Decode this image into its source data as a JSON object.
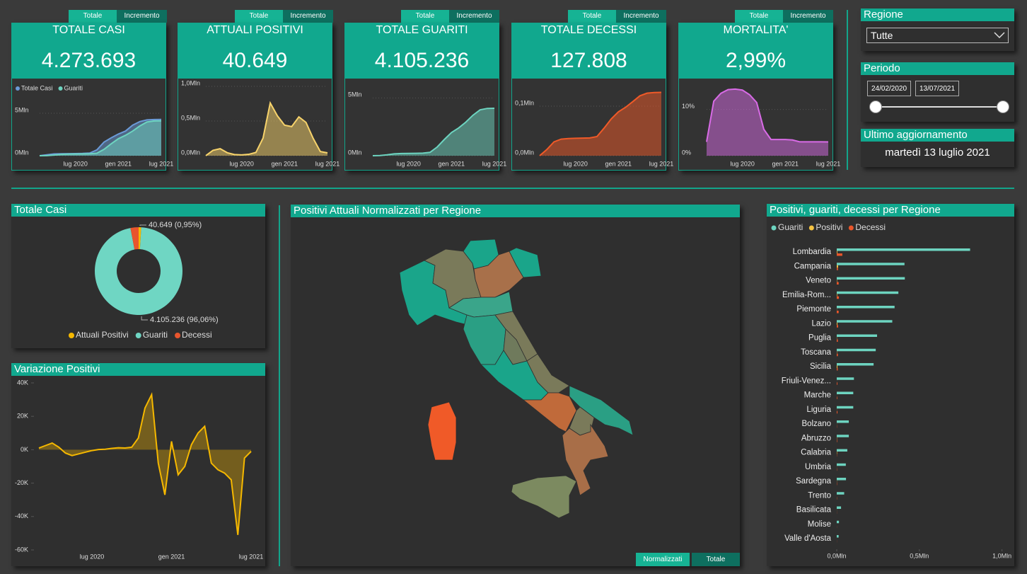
{
  "kpis": [
    {
      "tabs": [
        "Totale",
        "Incremento"
      ],
      "title": "TOTALE CASI",
      "value": "4.273.693"
    },
    {
      "tabs": [
        "Totale",
        "Incremento"
      ],
      "title": "ATTUALI POSITIVI",
      "value": "40.649"
    },
    {
      "tabs": [
        "Totale",
        "Incremento"
      ],
      "title": "TOTALE GUARITI",
      "value": "4.105.236"
    },
    {
      "tabs": [
        "Totale",
        "Incremento"
      ],
      "title": "TOTALE DECESSI",
      "value": "127.808"
    },
    {
      "tabs": [
        "Totale",
        "Incremento"
      ],
      "title": "MORTALITA'",
      "value": "2,99%"
    }
  ],
  "filters": {
    "regione": {
      "label": "Regione",
      "value": "Tutte"
    },
    "periodo": {
      "label": "Periodo",
      "from": "24/02/2020",
      "to": "13/07/2021"
    },
    "aggiornamento": {
      "label": "Ultimo aggiornamento",
      "value": "martedì 13 luglio 2021"
    }
  },
  "map": {
    "title": "Positivi Attuali Normalizzati per Regione",
    "buttons": [
      "Normalizzati",
      "Totale"
    ]
  },
  "chart_data": [
    {
      "type": "area",
      "categories": [
        null,
        null,
        null,
        null,
        null,
        "lug 2020",
        null,
        null,
        null,
        null,
        null,
        "gen 2021",
        null,
        null,
        null,
        null,
        null,
        "lug 2021"
      ],
      "series": [
        {
          "name": "Totale Casi",
          "color": "#6b9bd8",
          "values": [
            1000,
            105000,
            205000,
            232000,
            240000,
            247000,
            269000,
            314000,
            679000,
            1600000,
            2100000,
            2550000,
            2900000,
            3600000,
            4020000,
            4220000,
            4260000,
            4273693
          ]
        },
        {
          "name": "Guariti",
          "color": "#6dd4c0",
          "values": [
            0,
            15000,
            75000,
            160000,
            190000,
            200000,
            210000,
            225000,
            290000,
            750000,
            1400000,
            2000000,
            2400000,
            2900000,
            3500000,
            3970000,
            4090000,
            4105236
          ]
        }
      ],
      "ylim": [
        0,
        7000000
      ],
      "yticks": [
        {
          "value": 0,
          "label": "0Mln"
        },
        {
          "value": 5000000,
          "label": "5Mln"
        }
      ],
      "legend": "top-left"
    },
    {
      "type": "area",
      "categories": [
        null,
        null,
        null,
        null,
        null,
        "lug 2020",
        null,
        null,
        null,
        null,
        null,
        "gen 2021",
        null,
        null,
        null,
        null,
        null,
        "lug 2021"
      ],
      "color": "#f7d36b",
      "values": [
        1000,
        77000,
        101000,
        43000,
        17000,
        12000,
        20000,
        47000,
        255000,
        760000,
        575000,
        440000,
        420000,
        560000,
        480000,
        250000,
        60000,
        40649
      ],
      "ylim": [
        0,
        1000000
      ],
      "yticks": [
        {
          "value": 0,
          "label": "0,0Mln"
        },
        {
          "value": 500000,
          "label": "0,5Mln"
        },
        {
          "value": 1000000,
          "label": "1,0Mln"
        }
      ]
    },
    {
      "type": "area",
      "categories": [
        null,
        null,
        null,
        null,
        null,
        "lug 2020",
        null,
        null,
        null,
        null,
        null,
        "gen 2021",
        null,
        null,
        null,
        null,
        null,
        "lug 2021"
      ],
      "color": "#6dd4c0",
      "values": [
        0,
        15000,
        75000,
        160000,
        190000,
        200000,
        210000,
        225000,
        290000,
        750000,
        1400000,
        2000000,
        2400000,
        2900000,
        3500000,
        3970000,
        4090000,
        4105236
      ],
      "ylim": [
        0,
        6000000
      ],
      "yticks": [
        {
          "value": 0,
          "label": "0Mln"
        },
        {
          "value": 5000000,
          "label": "5Mln"
        }
      ]
    },
    {
      "type": "area",
      "categories": [
        null,
        null,
        null,
        null,
        null,
        "lug 2020",
        null,
        null,
        null,
        null,
        null,
        "gen 2021",
        null,
        null,
        null,
        null,
        null,
        "lug 2021"
      ],
      "color": "#f05a28",
      "values": [
        29,
        12400,
        27900,
        33400,
        34700,
        35100,
        35500,
        35900,
        38600,
        55600,
        74200,
        88500,
        97700,
        109000,
        120800,
        126200,
        127500,
        127808
      ],
      "ylim": [
        0,
        140000
      ],
      "yticks": [
        {
          "value": 0,
          "label": "0,0Mln"
        },
        {
          "value": 100000,
          "label": "0,1Mln"
        }
      ]
    },
    {
      "type": "area",
      "categories": [
        null,
        null,
        null,
        null,
        null,
        "lug 2020",
        null,
        null,
        null,
        null,
        null,
        "gen 2021",
        null,
        null,
        null,
        null,
        null,
        "lug 2021"
      ],
      "color": "#d86be6",
      "values": [
        3,
        11.8,
        13.5,
        14.3,
        14.4,
        14.2,
        13.2,
        11.5,
        5.7,
        3.5,
        3.5,
        3.5,
        3.4,
        3.0,
        3.0,
        3.0,
        3.0,
        2.99
      ],
      "ylim": [
        0,
        15
      ],
      "yticks": [
        {
          "value": 0,
          "label": "0%"
        },
        {
          "value": 10,
          "label": "10%"
        }
      ]
    },
    {
      "type": "pie",
      "title": "Totale Casi",
      "categories": [
        "Attuali Positivi",
        "Guariti",
        "Decessi"
      ],
      "values": [
        40649,
        4105236,
        127808
      ],
      "value_labels": [
        "40.649 (0,95%)",
        "4.105.236 (96,06%)",
        null
      ],
      "colors": [
        "#f5b800",
        "#6fd6c3",
        "#e8552d"
      ],
      "donut": true,
      "legend": "bottom"
    },
    {
      "type": "line",
      "title": "Variazione Positivi",
      "categories": [
        null,
        null,
        null,
        null,
        null,
        null,
        null,
        null,
        "lug 2020",
        null,
        null,
        null,
        null,
        null,
        null,
        null,
        null,
        null,
        null,
        null,
        "gen 2021",
        null,
        null,
        null,
        null,
        null,
        null,
        null,
        null,
        null,
        null,
        null,
        "lug 2021"
      ],
      "values": [
        1000,
        2500,
        4000,
        1500,
        -2000,
        -3500,
        -2500,
        -1500,
        -500,
        100,
        300,
        800,
        1200,
        1000,
        1500,
        7000,
        25000,
        33000,
        -8000,
        -27000,
        5000,
        -15000,
        -10000,
        3000,
        10000,
        14000,
        -8000,
        -12000,
        -14000,
        -18000,
        -51000,
        -5000,
        -1000
      ],
      "color": "#f5b800",
      "ylim": [
        -60000,
        40000
      ],
      "yticks": [
        {
          "value": 40000,
          "label": "40K"
        },
        {
          "value": 20000,
          "label": "20K"
        },
        {
          "value": 0,
          "label": "0K"
        },
        {
          "value": -20000,
          "label": "-20K"
        },
        {
          "value": -40000,
          "label": "-40K"
        },
        {
          "value": -60000,
          "label": "-60K"
        }
      ]
    },
    {
      "type": "bar",
      "title": "Positivi, guariti, decessi per Regione",
      "orientation": "horizontal",
      "categories": [
        "Lombardia",
        "Campania",
        "Veneto",
        "Emilia-Rom...",
        "Piemonte",
        "Lazio",
        "Puglia",
        "Toscana",
        "Sicilia",
        "Friuli-Venez...",
        "Marche",
        "Liguria",
        "Bolzano",
        "Abruzzo",
        "Calabria",
        "Umbria",
        "Sardegna",
        "Trento",
        "Basilicata",
        "Molise",
        "Valle d'Aosta"
      ],
      "series": [
        {
          "name": "Guariti",
          "color": "#6dd4c0",
          "values": [
            807000,
            410000,
            412000,
            373000,
            350000,
            336000,
            244000,
            236000,
            223000,
            104000,
            100000,
            100000,
            73000,
            73000,
            64000,
            55000,
            56000,
            45000,
            26000,
            13500,
            11500
          ]
        },
        {
          "name": "Positivi",
          "color": "#f5c342",
          "values": [
            3500,
            8000,
            1900,
            2800,
            800,
            4000,
            1200,
            1500,
            4200,
            300,
            300,
            500,
            400,
            1300,
            2000,
            300,
            800,
            100,
            300,
            20,
            30
          ]
        },
        {
          "name": "Decessi",
          "color": "#e8562a",
          "values": [
            33800,
            7600,
            11700,
            13200,
            11700,
            8400,
            6700,
            6900,
            5950,
            3800,
            3000,
            4300,
            1180,
            2500,
            1250,
            1440,
            1680,
            1350,
            600,
            490,
            470
          ]
        }
      ],
      "xlim": [
        0,
        1100000
      ],
      "xticks": [
        {
          "value": 0,
          "label": "0,0Mln"
        },
        {
          "value": 500000,
          "label": "0,5Mln"
        },
        {
          "value": 1000000,
          "label": "1,0Mln"
        }
      ],
      "legend": "top-left"
    }
  ]
}
